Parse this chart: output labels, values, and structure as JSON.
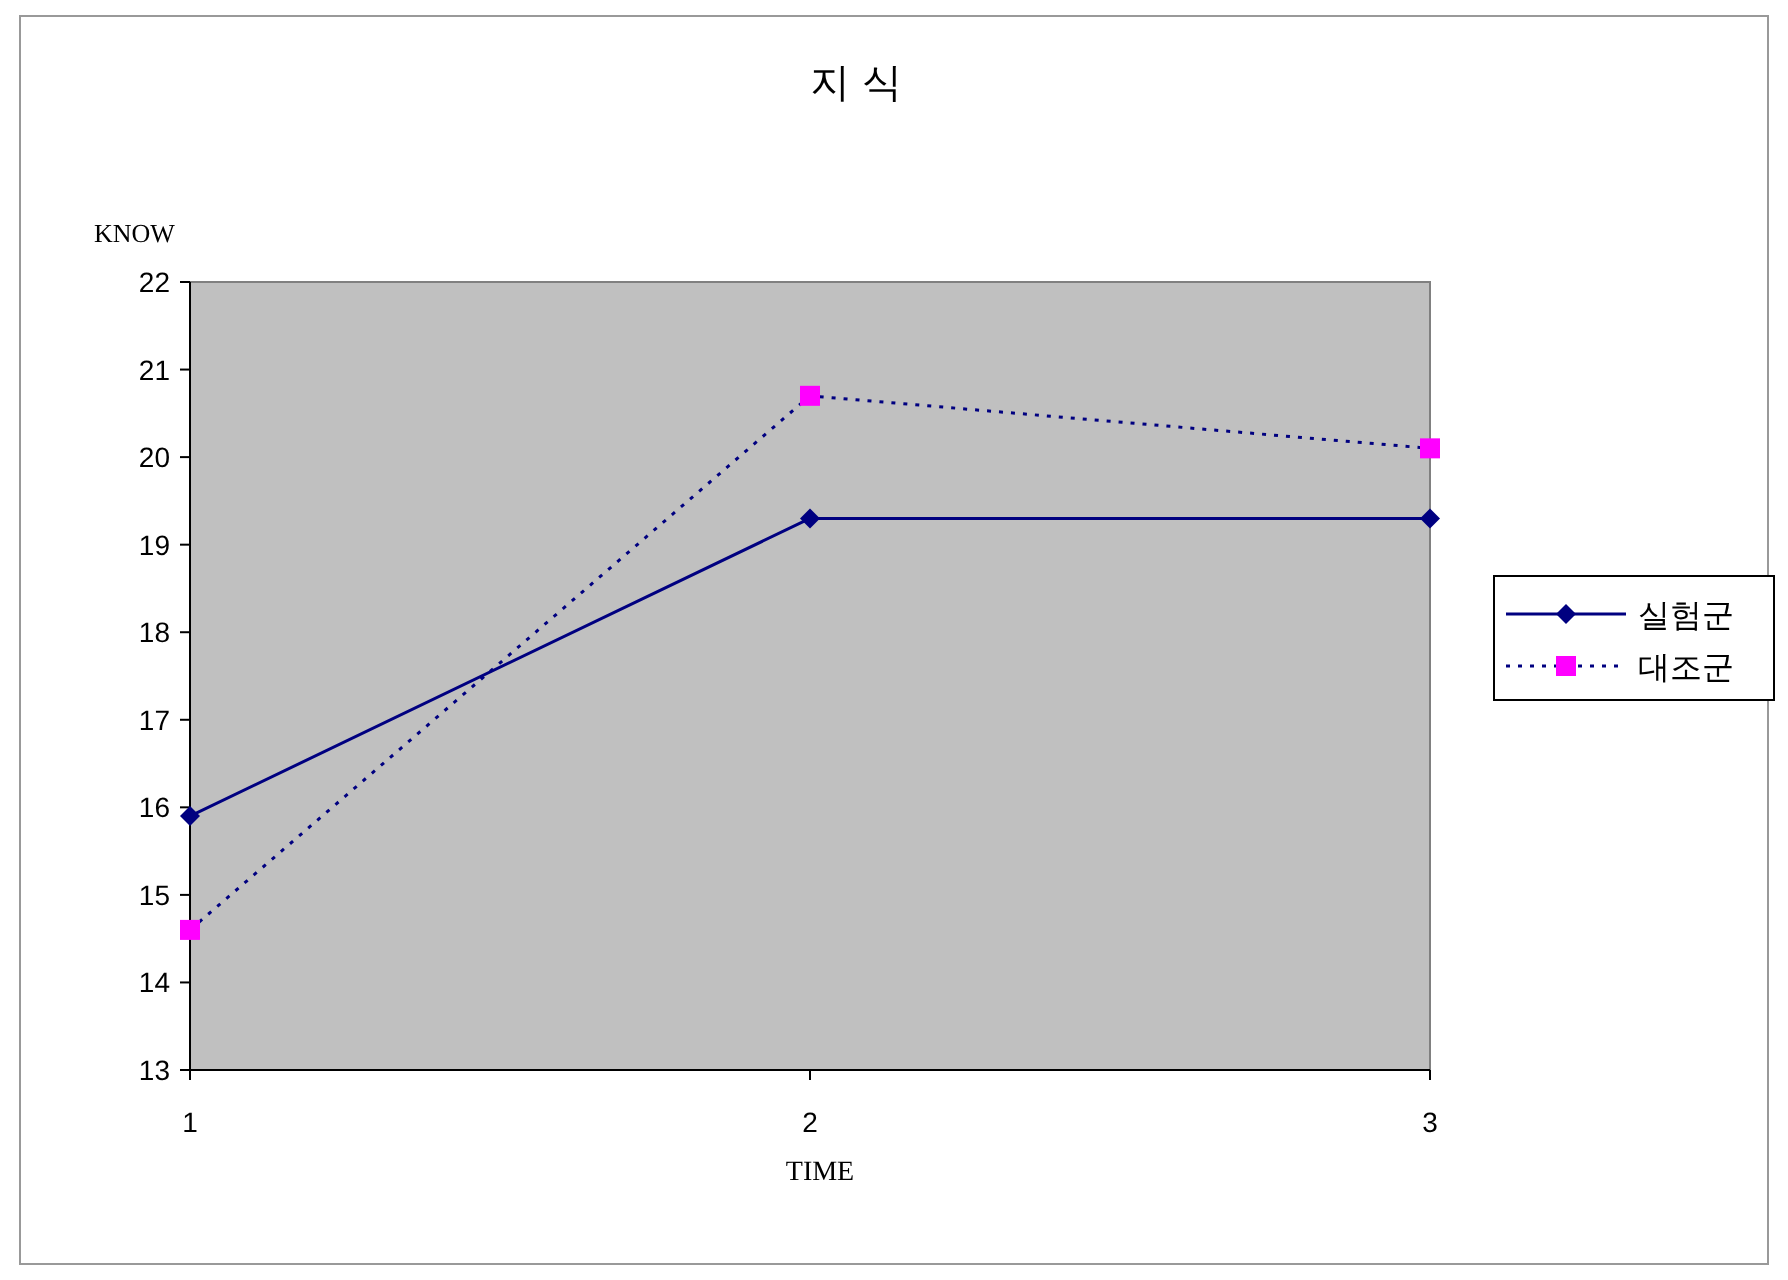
{
  "chart_data": {
    "type": "line",
    "title": "지  식",
    "xlabel": "TIME",
    "ylabel": "KNOW",
    "x": [
      1,
      2,
      3
    ],
    "xlim": [
      1,
      3
    ],
    "xticks": [
      1,
      2,
      3
    ],
    "ylim": [
      13,
      22
    ],
    "yticks": [
      13,
      14,
      15,
      16,
      17,
      18,
      19,
      20,
      21,
      22
    ],
    "grid": false,
    "legend": "right",
    "series": [
      {
        "name": "실험군",
        "color": "#000080",
        "values": [
          15.9,
          19.3,
          19.3
        ],
        "marker": "diamond",
        "line_style": "solid"
      },
      {
        "name": "대조군",
        "color": "#ff00ff",
        "values": [
          14.6,
          20.7,
          20.1
        ],
        "marker": "square",
        "line_style": "dotted"
      }
    ]
  }
}
